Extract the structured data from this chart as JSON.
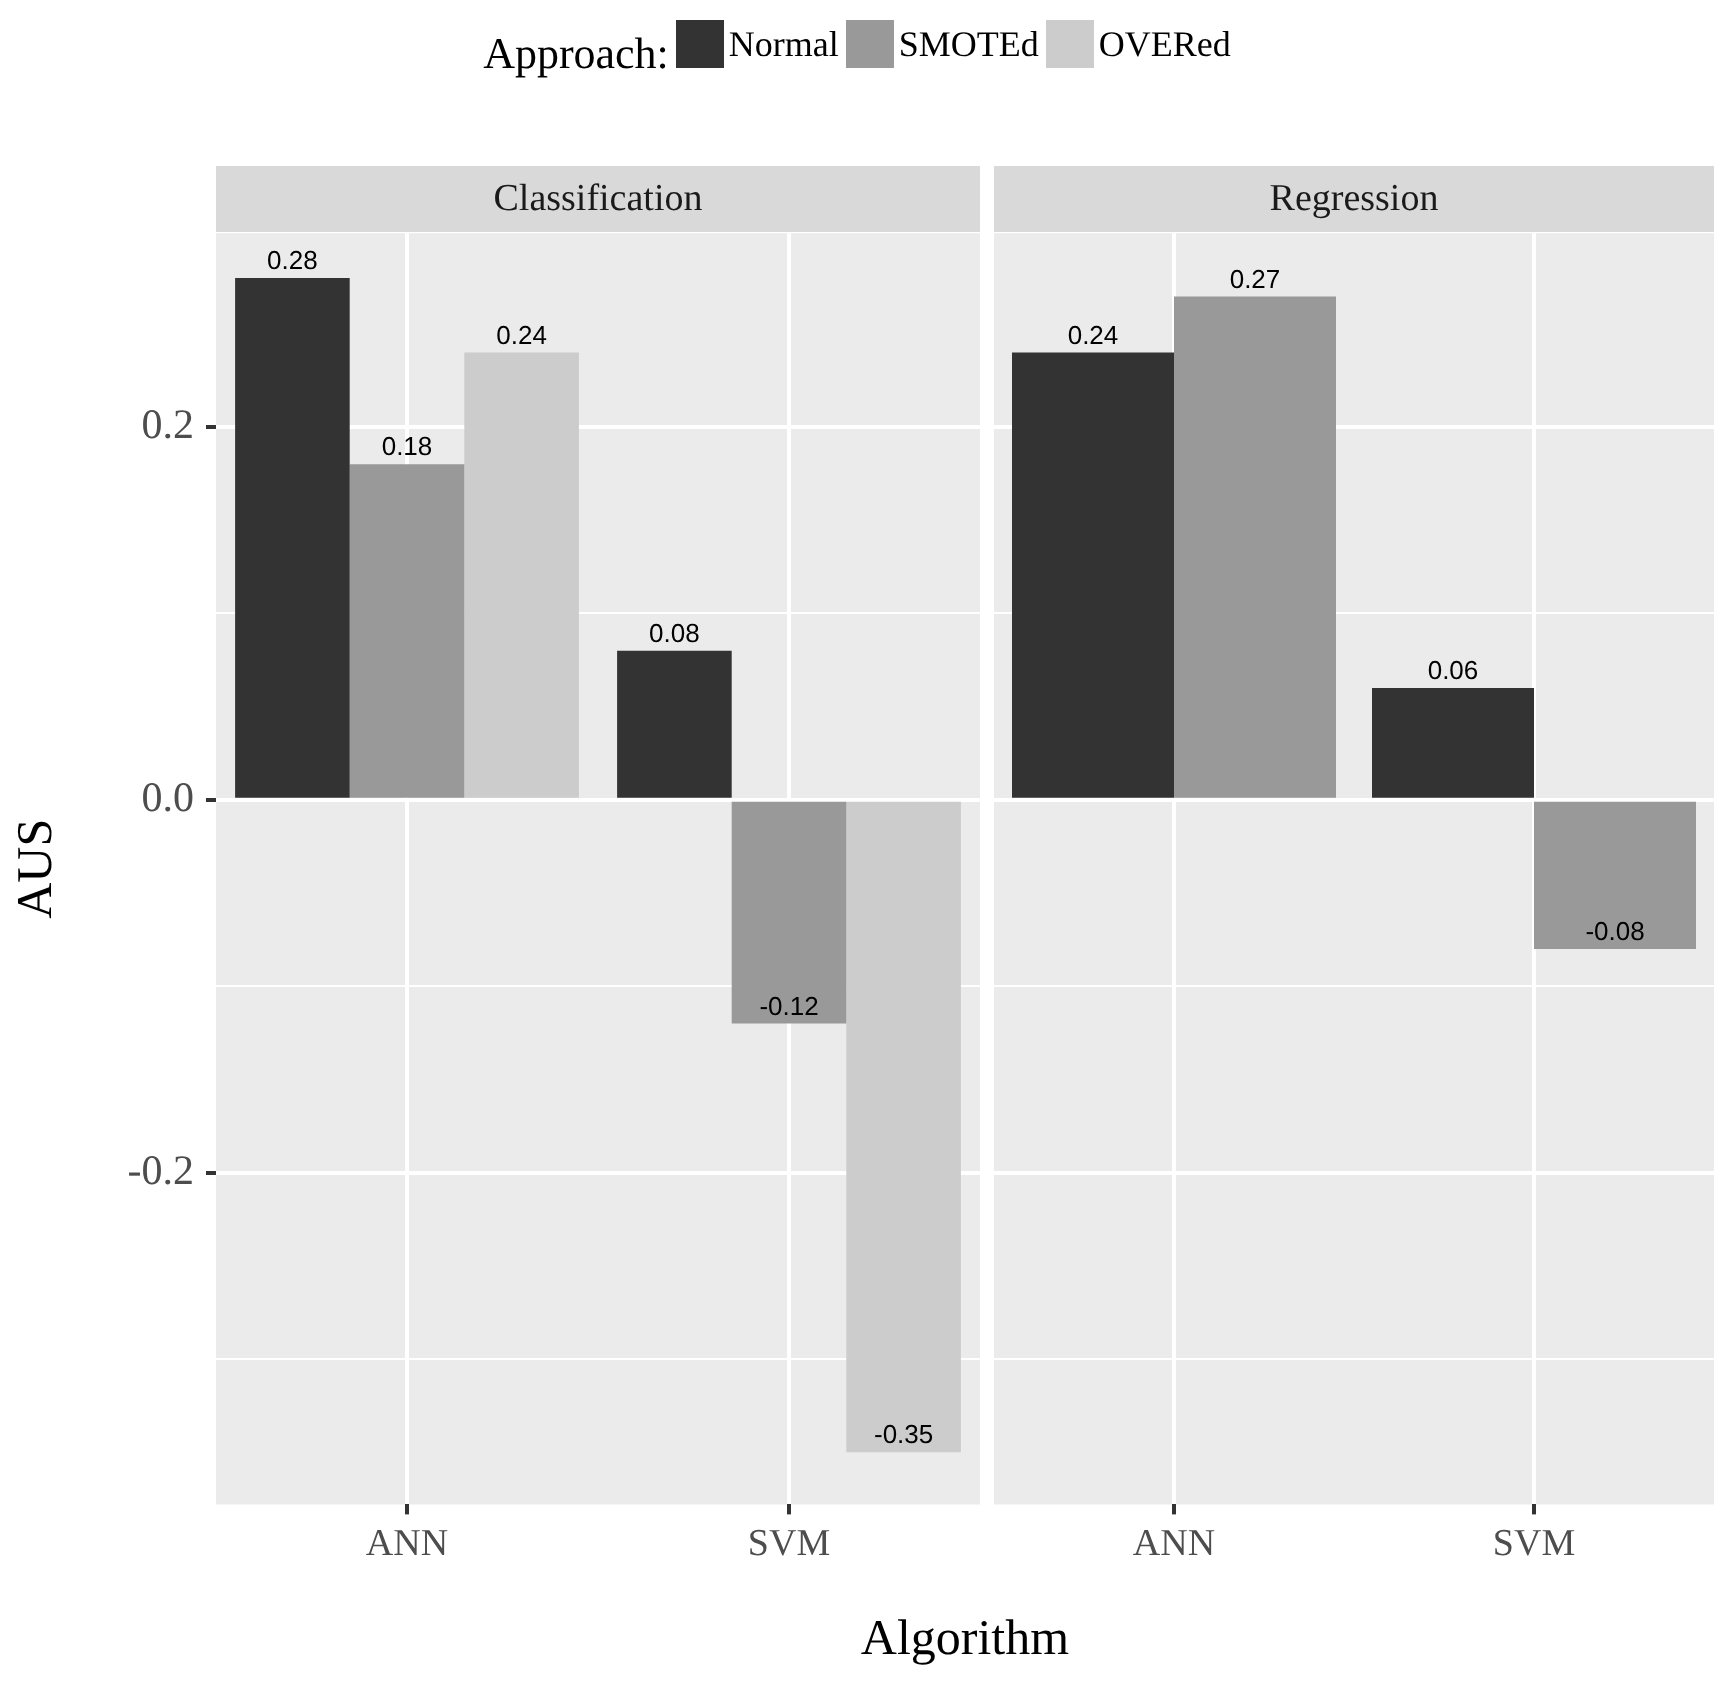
{
  "chart_data": [
    {
      "type": "bar",
      "title": "Classification",
      "xlabel": "Algorithm",
      "ylabel": "AUS",
      "legend_title": "Approach:",
      "legend": "top",
      "categories": [
        "ANN",
        "SVM"
      ],
      "series": [
        {
          "name": "Normal",
          "color": "#333333",
          "values": [
            0.28,
            0.08
          ]
        },
        {
          "name": "SMOTEd",
          "color": "#999999",
          "values": [
            0.18,
            -0.12
          ]
        },
        {
          "name": "OVERed",
          "color": "#cccccc",
          "values": [
            0.24,
            -0.35
          ]
        }
      ],
      "ylim": [
        -0.378,
        0.304
      ],
      "yticks": [
        {
          "value": -0.3,
          "label": null
        },
        {
          "value": -0.2,
          "label": "-0.2"
        },
        {
          "value": -0.1,
          "label": null
        },
        {
          "value": 0,
          "label": "0.0"
        },
        {
          "value": 0.1,
          "label": null
        },
        {
          "value": 0.2,
          "label": "0.2"
        }
      ],
      "grid": true,
      "data_labels": true
    },
    {
      "type": "bar",
      "title": "Regression",
      "categories": [
        "ANN",
        "SVM"
      ],
      "series": [
        {
          "color": "#333333",
          "values": [
            0.24,
            0.06
          ]
        },
        {
          "color": "#999999",
          "values": [
            0.27,
            -0.08
          ]
        }
      ],
      "ylim": [
        -0.378,
        0.304
      ],
      "yticks": [
        {
          "value": -0.3,
          "label": null
        },
        -0.2,
        {
          "value": -0.1,
          "label": null
        },
        0,
        {
          "value": 0.1,
          "label": null
        },
        0.2
      ],
      "tick_labels": "x",
      "grid": true,
      "data_labels": true
    }
  ]
}
